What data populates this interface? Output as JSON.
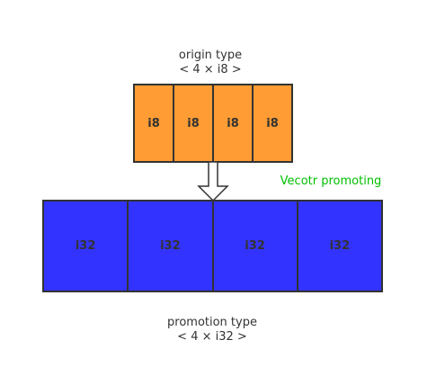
{
  "origin": {
    "title": "origin type",
    "type_text": "< 4 × i8 >",
    "cells": [
      "i8",
      "i8",
      "i8",
      "i8"
    ],
    "cell_color": "#ff9c33"
  },
  "arrow_label": "Vecotr promoting",
  "arrow_label_color": "#00c000",
  "promotion": {
    "title": "promotion type",
    "type_text": "< 4 × i32 >",
    "cells": [
      "i32",
      "i32",
      "i32",
      "i32"
    ],
    "cell_color": "#3333ff"
  }
}
